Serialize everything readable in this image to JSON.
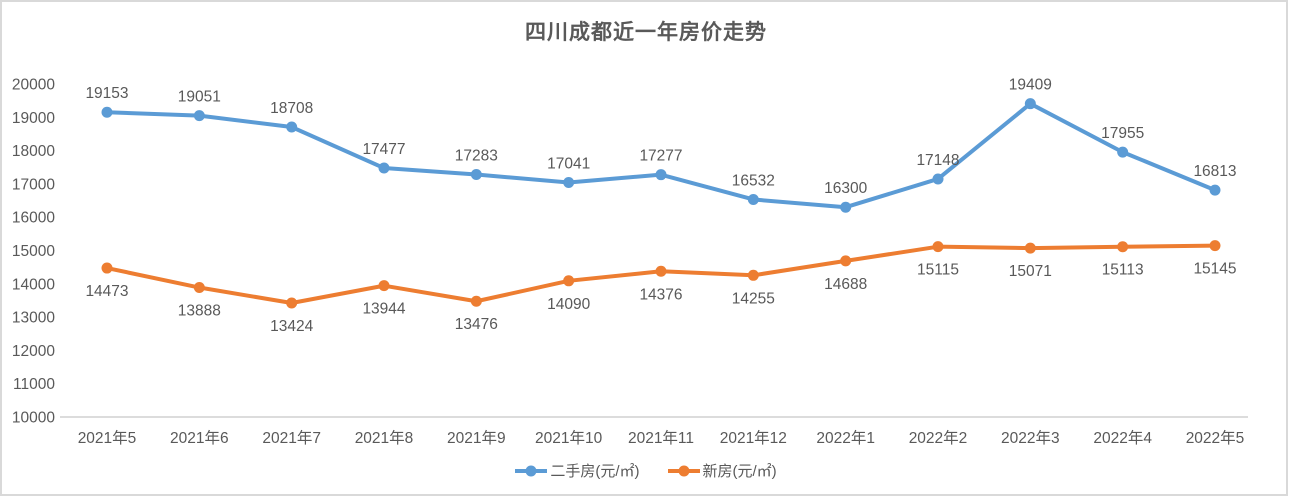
{
  "chart_data": {
    "type": "line",
    "title": "四川成都近一年房价走势",
    "xlabel": "",
    "ylabel": "",
    "categories": [
      "2021年5",
      "2021年6",
      "2021年7",
      "2021年8",
      "2021年9",
      "2021年10",
      "2021年11",
      "2021年12",
      "2022年1",
      "2022年2",
      "2022年3",
      "2022年4",
      "2022年5"
    ],
    "series": [
      {
        "name": "二手房(元/㎡)",
        "color": "#5B9BD5",
        "label_position": "above",
        "values": [
          19153,
          19051,
          18708,
          17477,
          17283,
          17041,
          17277,
          16532,
          16300,
          17148,
          19409,
          17955,
          16813
        ]
      },
      {
        "name": "新房(元/㎡)",
        "color": "#ED7D31",
        "label_position": "below",
        "values": [
          14473,
          13888,
          13424,
          13944,
          13476,
          14090,
          14376,
          14255,
          14688,
          15115,
          15071,
          15113,
          15145
        ]
      }
    ],
    "ylim": [
      10000,
      20000
    ],
    "yticks": [
      10000,
      11000,
      12000,
      13000,
      14000,
      15000,
      16000,
      17000,
      18000,
      19000,
      20000
    ],
    "grid": false,
    "legend_position": "bottom",
    "colors": {
      "text": "#595959",
      "axis_line": "#d0d0d0",
      "frame_border": "#d9d9d9",
      "background": "#ffffff"
    }
  }
}
